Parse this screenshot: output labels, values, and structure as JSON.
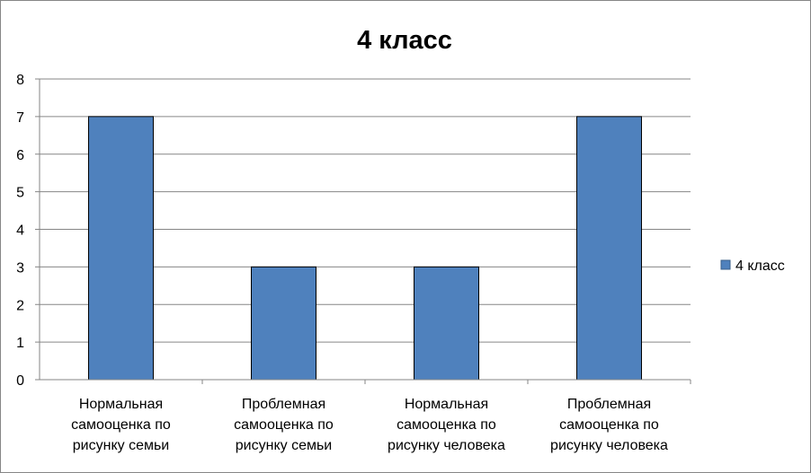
{
  "chart_data": {
    "type": "bar",
    "title": "4 класс",
    "categories": [
      [
        "Нормальная",
        "самооценка по",
        "рисунку семьи"
      ],
      [
        "Проблемная",
        "самооценка по",
        "рисунку семьи"
      ],
      [
        "Нормальная",
        "самооценка по",
        "рисунку человека"
      ],
      [
        "Проблемная",
        "самооценка по",
        "рисунку человека"
      ]
    ],
    "series": [
      {
        "name": "4 класс",
        "values": [
          7,
          3,
          3,
          7
        ],
        "color": "#4F81BD"
      }
    ],
    "ylim": [
      0,
      8
    ],
    "yticks": [
      "0",
      "1",
      "2",
      "3",
      "4",
      "5",
      "6",
      "7",
      "8"
    ],
    "grid": true,
    "legend": "right"
  }
}
